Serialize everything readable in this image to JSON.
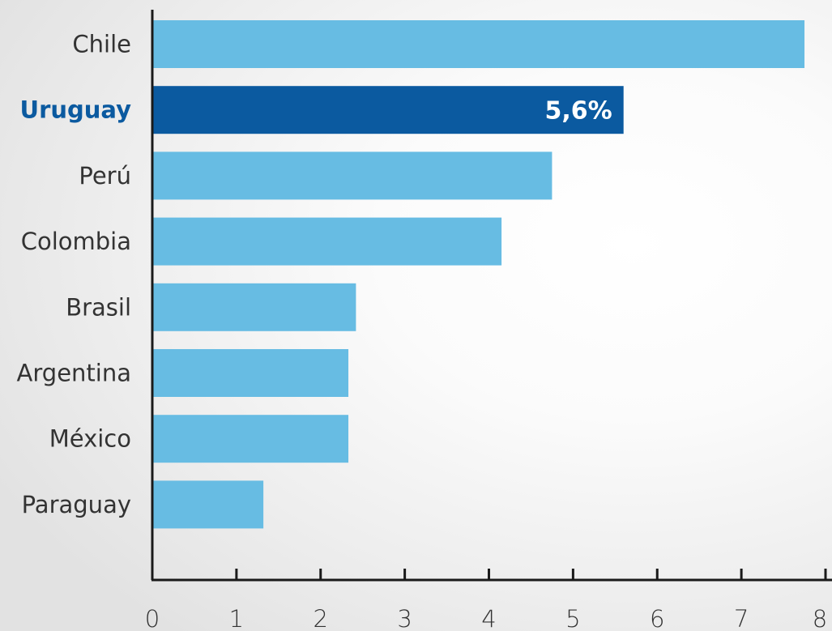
{
  "chart_data": {
    "type": "bar",
    "orientation": "horizontal",
    "categories": [
      "Chile",
      "Uruguay",
      "Perú",
      "Colombia",
      "Brasil",
      "Argentina",
      "México",
      "Paraguay"
    ],
    "values": [
      7.75,
      5.6,
      4.75,
      4.15,
      2.42,
      2.33,
      2.33,
      1.32
    ],
    "highlight": "Uruguay",
    "data_labels": [
      {
        "category": "Uruguay",
        "text": "5,6%"
      }
    ],
    "xlim": [
      0,
      8
    ],
    "x_ticks": [
      "0",
      "1",
      "2",
      "3",
      "4",
      "5",
      "6",
      "7",
      "8"
    ],
    "grid": false,
    "colors": {
      "bar": "#67BCE3",
      "highlight_bar": "#0B5AA0",
      "highlight_label": "#0B5AA0",
      "label": "#333333",
      "axis": "#1a1a1a",
      "data_label": "#ffffff"
    }
  }
}
